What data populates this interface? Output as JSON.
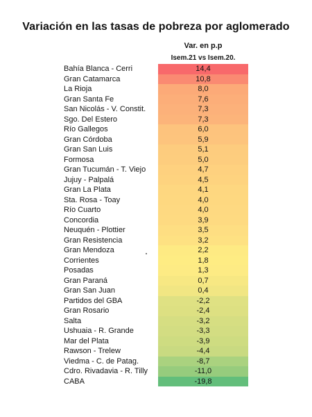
{
  "chart_data": {
    "type": "table",
    "title": "Variación en las tasas de pobreza por aglomerado",
    "column_header": [
      "Var. en p.p",
      "Isem.21 vs Isem.20."
    ],
    "rows": [
      {
        "label": "Bahía Blanca - Cerri",
        "value": 14.4,
        "display": "14,4",
        "color": "#f8696b"
      },
      {
        "label": "Gran Catamarca",
        "value": 10.8,
        "display": "10,8",
        "color": "#fa8a72"
      },
      {
        "label": "La Rioja",
        "value": 8.0,
        "display": "8,0",
        "color": "#fcaa78"
      },
      {
        "label": "Gran Santa Fe",
        "value": 7.6,
        "display": "7,6",
        "color": "#fcae79"
      },
      {
        "label": "San Nicolás - V. Constit.",
        "value": 7.3,
        "display": "7,3",
        "color": "#fcb17a"
      },
      {
        "label": "Sgo. Del Estero",
        "value": 7.3,
        "display": "7,3",
        "color": "#fcb47a"
      },
      {
        "label": "Río Gallegos",
        "value": 6.0,
        "display": "6,0",
        "color": "#fdc37d"
      },
      {
        "label": "Gran Córdoba",
        "value": 5.9,
        "display": "5,9",
        "color": "#fdc47d"
      },
      {
        "label": "Gran San Luis",
        "value": 5.1,
        "display": "5,1",
        "color": "#fdcc7e"
      },
      {
        "label": "Formosa",
        "value": 5.0,
        "display": "5,0",
        "color": "#fdcd7e"
      },
      {
        "label": "Gran Tucumán - T. Viejo",
        "value": 4.7,
        "display": "4,7",
        "color": "#fed17f"
      },
      {
        "label": "Jujuy - Palpalá",
        "value": 4.5,
        "display": "4,5",
        "color": "#fed37f"
      },
      {
        "label": "Gran La Plata",
        "value": 4.1,
        "display": "4,1",
        "color": "#fed780"
      },
      {
        "label": "Sta. Rosa - Toay",
        "value": 4.0,
        "display": "4,0",
        "color": "#fed880"
      },
      {
        "label": "Río Cuarto",
        "value": 4.0,
        "display": "4,0",
        "color": "#fed981"
      },
      {
        "label": "Concordia",
        "value": 3.9,
        "display": "3,9",
        "color": "#feda81"
      },
      {
        "label": "Neuquén - Plottier",
        "value": 3.5,
        "display": "3,5",
        "color": "#fede82"
      },
      {
        "label": "Gran Resistencia",
        "value": 3.2,
        "display": "3,2",
        "color": "#fee182"
      },
      {
        "label": "Gran Mendoza",
        "value": 2.2,
        "display": "2,2",
        "color": "#feea83"
      },
      {
        "label": "Corrientes",
        "value": 1.8,
        "display": "1,8",
        "color": "#feec83"
      },
      {
        "label": "Posadas",
        "value": 1.3,
        "display": "1,3",
        "color": "#fdeb84"
      },
      {
        "label": "Gran Paraná",
        "value": 0.7,
        "display": "0,7",
        "color": "#f7e883"
      },
      {
        "label": "Gran San Juan",
        "value": 0.4,
        "display": "0,4",
        "color": "#f1e683"
      },
      {
        "label": "Partidos del GBA",
        "value": -2.2,
        "display": "-2,2",
        "color": "#dfe183"
      },
      {
        "label": "Gran Rosario",
        "value": -2.4,
        "display": "-2,4",
        "color": "#dde082"
      },
      {
        "label": "Salta",
        "value": -3.2,
        "display": "-3,2",
        "color": "#d6de82"
      },
      {
        "label": "Ushuaia - R. Grande",
        "value": -3.3,
        "display": "-3,3",
        "color": "#d3dd82"
      },
      {
        "label": "Mar del Plata",
        "value": -3.9,
        "display": "-3,9",
        "color": "#cedc81"
      },
      {
        "label": "Rawson - Trelew",
        "value": -4.4,
        "display": "-4,4",
        "color": "#c9da81"
      },
      {
        "label": "Viedma - C. de Patag.",
        "value": -8.7,
        "display": "-8,7",
        "color": "#aad27f"
      },
      {
        "label": "Cdro. Rivadavia - R. Tilly",
        "value": -11.0,
        "display": "-11,0",
        "color": "#97cc7d"
      },
      {
        "label": "CABA",
        "value": -19.8,
        "display": "-19,8",
        "color": "#63be7b"
      }
    ]
  }
}
